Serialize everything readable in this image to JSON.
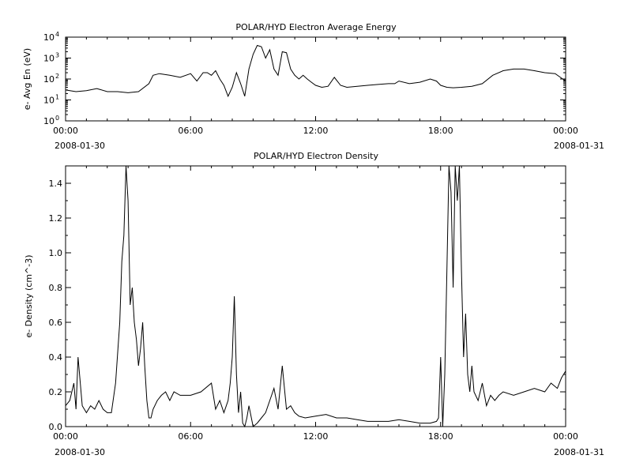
{
  "chart_data": [
    {
      "type": "line",
      "title": "POLAR/HYD  Electron Average Energy",
      "ylabel": "e- Avg En (eV)",
      "yscale": "log",
      "ylim": [
        1,
        10000
      ],
      "y_tick_labels": [
        "10^0",
        "10^1",
        "10^2",
        "10^3",
        "10^4"
      ],
      "xlim_hours": [
        0,
        24
      ],
      "x_tick_labels": [
        "00:00",
        "06:00",
        "12:00",
        "18:00",
        "00:00"
      ],
      "x_date_labels": [
        "2008-01-30",
        "2008-01-31"
      ],
      "series": [
        {
          "x_hours": [
            0.0,
            0.5,
            1.0,
            1.5,
            2.0,
            2.5,
            3.0,
            3.5,
            4.0,
            4.2,
            4.5,
            5.0,
            5.5,
            6.0,
            6.3,
            6.6,
            6.8,
            7.0,
            7.2,
            7.4,
            7.6,
            7.8,
            8.0,
            8.2,
            8.4,
            8.6,
            8.8,
            9.0,
            9.2,
            9.4,
            9.6,
            9.8,
            10.0,
            10.2,
            10.4,
            10.6,
            10.8,
            11.0,
            11.2,
            11.4,
            11.6,
            11.8,
            12.0,
            12.3,
            12.6,
            12.9,
            13.2,
            13.5,
            14.0,
            14.5,
            15.0,
            15.5,
            15.8,
            16.0,
            16.5,
            17.0,
            17.5,
            17.8,
            18.0,
            18.3,
            18.6,
            19.0,
            19.5,
            20.0,
            20.5,
            21.0,
            21.5,
            22.0,
            22.5,
            23.0,
            23.5,
            24.0
          ],
          "values": [
            30,
            25,
            28,
            35,
            25,
            25,
            22,
            25,
            60,
            150,
            180,
            150,
            120,
            180,
            80,
            200,
            200,
            150,
            250,
            100,
            50,
            15,
            40,
            200,
            60,
            15,
            300,
            1500,
            4000,
            3500,
            1000,
            2500,
            300,
            150,
            2000,
            1800,
            300,
            150,
            100,
            150,
            100,
            70,
            50,
            40,
            45,
            120,
            50,
            40,
            45,
            50,
            55,
            60,
            60,
            80,
            60,
            70,
            100,
            80,
            50,
            40,
            38,
            40,
            45,
            60,
            150,
            250,
            300,
            300,
            250,
            200,
            180,
            80
          ]
        }
      ]
    },
    {
      "type": "line",
      "title": "POLAR/HYD  Electron Density",
      "ylabel": "e- Density (cm^-3)",
      "ylim": [
        0,
        1.5
      ],
      "y_tick_labels": [
        "0.0",
        "0.2",
        "0.4",
        "0.6",
        "0.8",
        "1.0",
        "1.2",
        "1.4"
      ],
      "xlim_hours": [
        0,
        24
      ],
      "x_tick_labels": [
        "00:00",
        "06:00",
        "12:00",
        "18:00",
        "00:00"
      ],
      "x_date_labels": [
        "2008-01-30",
        "2008-01-31"
      ],
      "series": [
        {
          "x_hours": [
            0.0,
            0.2,
            0.4,
            0.5,
            0.6,
            0.8,
            1.0,
            1.2,
            1.4,
            1.6,
            1.8,
            2.0,
            2.2,
            2.4,
            2.6,
            2.7,
            2.8,
            2.9,
            3.0,
            3.1,
            3.2,
            3.3,
            3.4,
            3.5,
            3.6,
            3.7,
            3.8,
            3.9,
            4.0,
            4.1,
            4.2,
            4.4,
            4.6,
            4.8,
            5.0,
            5.2,
            5.5,
            6.0,
            6.5,
            7.0,
            7.2,
            7.4,
            7.6,
            7.8,
            7.9,
            8.0,
            8.1,
            8.2,
            8.3,
            8.4,
            8.5,
            8.6,
            8.7,
            8.8,
            9.0,
            9.2,
            9.4,
            9.6,
            9.8,
            10.0,
            10.2,
            10.4,
            10.6,
            10.8,
            11.0,
            11.2,
            11.5,
            12.0,
            12.5,
            13.0,
            13.5,
            14.0,
            14.5,
            15.0,
            15.5,
            16.0,
            16.5,
            17.0,
            17.5,
            17.8,
            17.9,
            18.0,
            18.1,
            18.2,
            18.3,
            18.4,
            18.5,
            18.6,
            18.7,
            18.8,
            18.9,
            19.0,
            19.1,
            19.2,
            19.3,
            19.4,
            19.5,
            19.6,
            19.8,
            20.0,
            20.2,
            20.4,
            20.6,
            20.8,
            21.0,
            21.5,
            22.0,
            22.5,
            23.0,
            23.3,
            23.6,
            23.8,
            24.0
          ],
          "values": [
            0.12,
            0.15,
            0.25,
            0.1,
            0.4,
            0.12,
            0.08,
            0.12,
            0.1,
            0.15,
            0.1,
            0.08,
            0.08,
            0.25,
            0.6,
            0.95,
            1.1,
            1.5,
            1.3,
            0.7,
            0.8,
            0.6,
            0.5,
            0.35,
            0.45,
            0.6,
            0.35,
            0.15,
            0.05,
            0.05,
            0.1,
            0.15,
            0.18,
            0.2,
            0.15,
            0.2,
            0.18,
            0.18,
            0.2,
            0.25,
            0.1,
            0.15,
            0.08,
            0.15,
            0.25,
            0.4,
            0.75,
            0.3,
            0.08,
            0.2,
            0.02,
            0.0,
            0.05,
            0.12,
            0.0,
            0.02,
            0.05,
            0.08,
            0.15,
            0.22,
            0.1,
            0.35,
            0.1,
            0.12,
            0.08,
            0.06,
            0.05,
            0.06,
            0.07,
            0.05,
            0.05,
            0.04,
            0.03,
            0.03,
            0.03,
            0.04,
            0.03,
            0.02,
            0.02,
            0.03,
            0.05,
            0.4,
            0.0,
            0.3,
            0.9,
            1.5,
            1.35,
            0.8,
            1.5,
            1.3,
            1.5,
            0.9,
            0.4,
            0.65,
            0.3,
            0.2,
            0.35,
            0.2,
            0.15,
            0.25,
            0.12,
            0.18,
            0.15,
            0.18,
            0.2,
            0.18,
            0.2,
            0.22,
            0.2,
            0.25,
            0.22,
            0.28,
            0.32
          ]
        }
      ]
    }
  ]
}
